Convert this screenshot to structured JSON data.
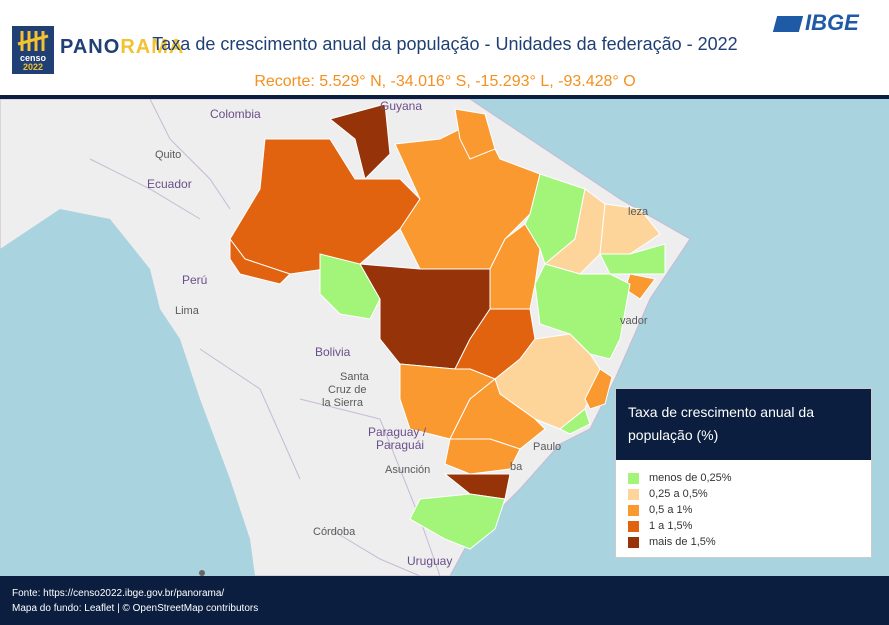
{
  "header": {
    "logo_line1": "censo",
    "logo_line2": "2022",
    "panorama_a": "PANO",
    "panorama_b": "RAMA",
    "title": "Taxa de crescimento anual da população - Unidades da federação - 2022",
    "subtitle": "Recorte: 5.529° N, -34.016° S, -15.293° L, -93.428° O",
    "brand": "IBGE"
  },
  "map": {
    "places": {
      "colombia": "Colombia",
      "guyana": "Guyana",
      "quito": "Quito",
      "ecuador": "Ecuador",
      "peru": "Perú",
      "lima": "Lima",
      "bolivia": "Bolivia",
      "santa_cruz_1": "Santa",
      "santa_cruz_2": "Cruz de",
      "santa_cruz_3": "la Sierra",
      "paraguay_1": "Paraguay /",
      "paraguay_2": "Paraguái",
      "asuncion": "Asunción",
      "cordoba": "Córdoba",
      "uruguay": "Uruguay",
      "fortaleza": "leza",
      "salvador": "vador",
      "sao_paulo": "Paulo",
      "curitiba": "ba"
    },
    "colors": {
      "ocean": "#a9d3df",
      "land": "#eeeeee",
      "cat1": "#a3f57a",
      "cat2": "#fdd59b",
      "cat3": "#f9992f",
      "cat4": "#e1630f",
      "cat5": "#973308"
    }
  },
  "legend": {
    "title": "Taxa de crescimento anual da população (%)",
    "items": [
      {
        "label": "menos de 0,25%",
        "color": "#a3f57a"
      },
      {
        "label": "0,25 a 0,5%",
        "color": "#fdd59b"
      },
      {
        "label": "0,5 a 1%",
        "color": "#f9992f"
      },
      {
        "label": "1 a 1,5%",
        "color": "#e1630f"
      },
      {
        "label": "mais de 1,5%",
        "color": "#973308"
      }
    ]
  },
  "footer": {
    "source": "Fonte: https://censo2022.ibge.gov.br/panorama/",
    "attribution": "Mapa do fundo: Leaflet | © OpenStreetMap contributors"
  }
}
